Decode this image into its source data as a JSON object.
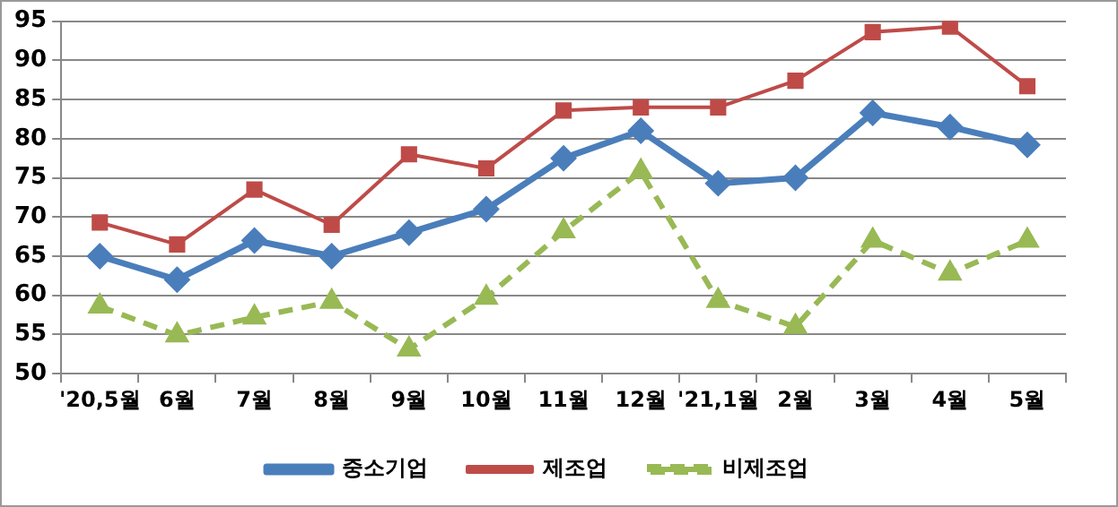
{
  "chart_data": {
    "type": "line",
    "categories": [
      "'20,5월",
      "6월",
      "7월",
      "8월",
      "9월",
      "10월",
      "11월",
      "12월",
      "'21,1월",
      "2월",
      "3월",
      "4월",
      "5월"
    ],
    "series": [
      {
        "name": "중소기업",
        "color": "#4a7ebb",
        "marker": "diamond",
        "line_style": "solid",
        "values": [
          65,
          62,
          67,
          65,
          68,
          71,
          77.5,
          81,
          74.3,
          75,
          83.3,
          81.5,
          79.2
        ]
      },
      {
        "name": "제조업",
        "color": "#be4b48",
        "marker": "square",
        "line_style": "solid",
        "values": [
          69.3,
          66.5,
          73.5,
          69,
          78,
          76.2,
          83.6,
          84,
          84,
          87.4,
          93.6,
          94.3,
          86.7
        ]
      },
      {
        "name": "비제조업",
        "color": "#98b954",
        "marker": "triangle",
        "line_style": "dashed",
        "values": [
          58.6,
          54.9,
          57.2,
          59.2,
          53.1,
          59.7,
          68.2,
          75.8,
          59.3,
          56,
          67,
          62.8,
          67
        ]
      }
    ],
    "ylim": [
      50,
      95
    ],
    "yticks": [
      50,
      55,
      60,
      65,
      70,
      75,
      80,
      85,
      90,
      95
    ],
    "grid": "y",
    "legend": "bottom"
  }
}
